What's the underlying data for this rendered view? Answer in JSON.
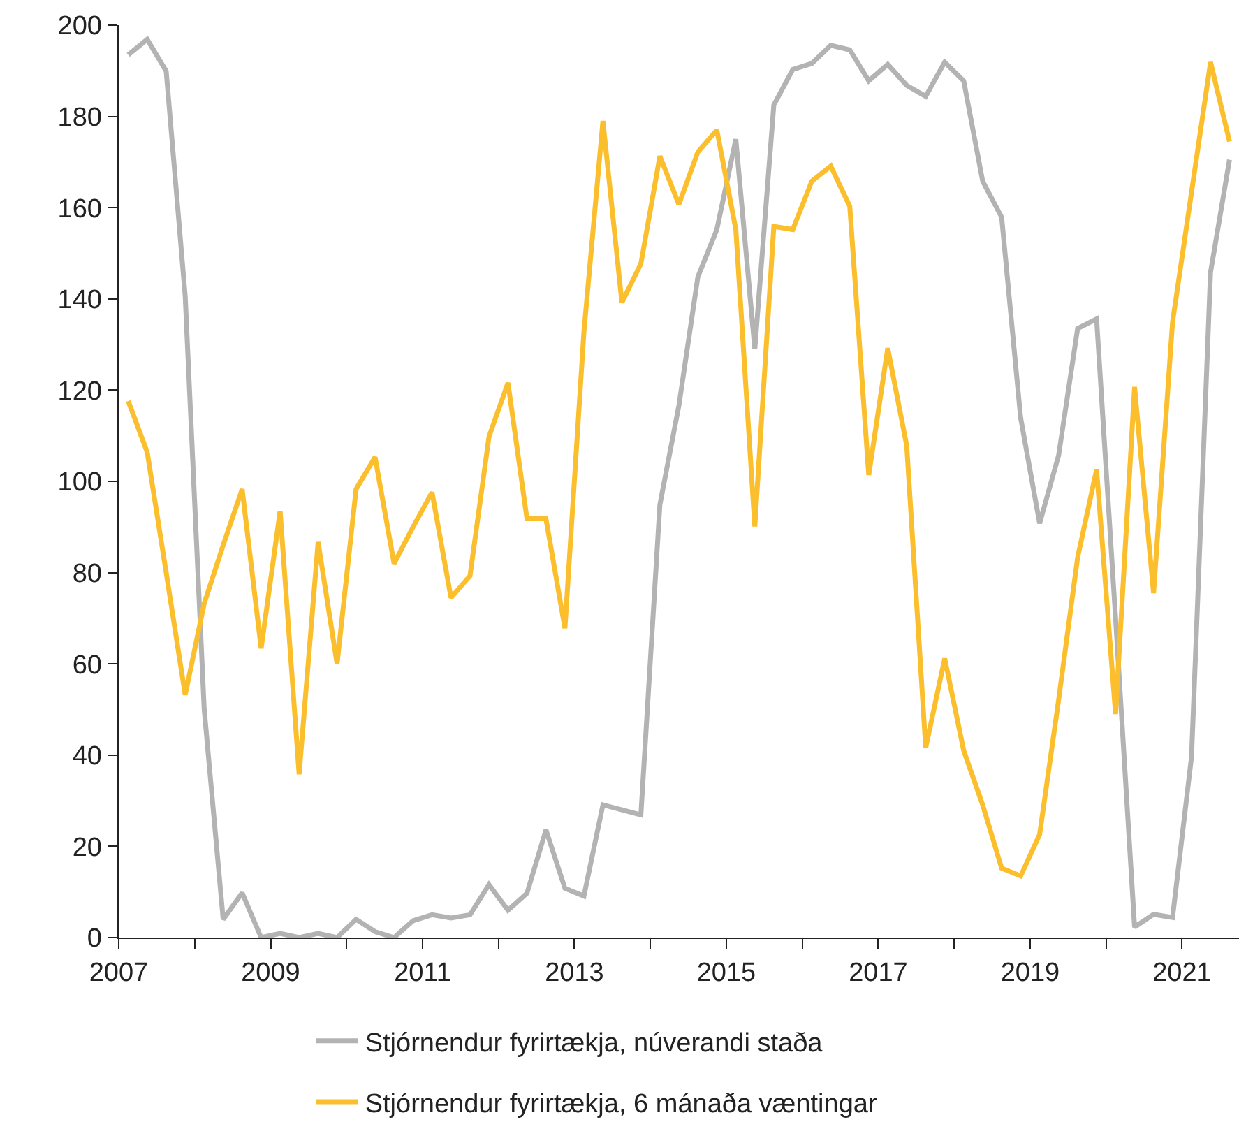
{
  "chart_data": {
    "type": "line",
    "x": [
      2007.125,
      2007.375,
      2007.625,
      2007.875,
      2008.125,
      2008.375,
      2008.625,
      2008.875,
      2009.125,
      2009.375,
      2009.625,
      2009.875,
      2010.125,
      2010.375,
      2010.625,
      2010.875,
      2011.125,
      2011.375,
      2011.625,
      2011.875,
      2012.125,
      2012.375,
      2012.625,
      2012.875,
      2013.125,
      2013.375,
      2013.625,
      2013.875,
      2014.125,
      2014.375,
      2014.625,
      2014.875,
      2015.125,
      2015.375,
      2015.625,
      2015.875,
      2016.125,
      2016.375,
      2016.625,
      2016.875,
      2017.125,
      2017.375,
      2017.625,
      2017.875,
      2018.125,
      2018.375,
      2018.625,
      2018.875,
      2019.125,
      2019.375,
      2019.625,
      2019.875,
      2020.125,
      2020.375,
      2020.625,
      2020.875,
      2021.125,
      2021.375,
      2021.625
    ],
    "series": [
      {
        "name": "Stjórnendur fyrirtækja, núverandi staða",
        "color": "#b3b3b3",
        "values": [
          193.5,
          196.9,
          189.9,
          140.6,
          50.1,
          4,
          9.8,
          0,
          0.9,
          0,
          0.9,
          0,
          4,
          1.3,
          0,
          3.7,
          5,
          4.3,
          5,
          11.6,
          6,
          9.7,
          23.6,
          10.8,
          9.1,
          29.1,
          28,
          26.9,
          94.9,
          116.6,
          144.8,
          155.2,
          175,
          129,
          182.5,
          190.3,
          191.6,
          195.6,
          194.6,
          187.8,
          191.4,
          186.8,
          184.4,
          191.9,
          187.8,
          165.8,
          157.9,
          113.9,
          90.8,
          105.7,
          133.5,
          135.6,
          70,
          2.3,
          5.1,
          4.4,
          39.7,
          145.8,
          170.5
        ]
      },
      {
        "name": "Stjórnendur fyrirtækja, 6 mánaða væntingar",
        "color": "#fbbf2d",
        "values": [
          117.6,
          106.4,
          80,
          53.2,
          73.2,
          86,
          98.3,
          63.4,
          93.5,
          35.8,
          86.7,
          60,
          98.3,
          105.3,
          82,
          90,
          97.6,
          74.5,
          79.3,
          109.8,
          121.6,
          91.8,
          91.8,
          67.8,
          132.8,
          179,
          139.2,
          147.7,
          171.3,
          160.7,
          172.2,
          177,
          155.2,
          90.1,
          155.9,
          155.2,
          165.8,
          169.1,
          160.3,
          101.4,
          129.2,
          107.8,
          41.6,
          61.2,
          41,
          29.1,
          15.2,
          13.5,
          22.6,
          52.1,
          83.3,
          102.6,
          49,
          120.7,
          75.5,
          134.9,
          163.4,
          191.9,
          174.5
        ]
      }
    ],
    "xlim": [
      2007,
      2021.75
    ],
    "xticks": [
      2007,
      {
        "value": 2008,
        "label": null
      },
      2009,
      {
        "value": 2010,
        "label": null
      },
      2011,
      {
        "value": 2012,
        "label": null
      },
      2013,
      {
        "value": 2014,
        "label": null
      },
      2015,
      {
        "value": 2016,
        "label": null
      },
      2017,
      {
        "value": 2018,
        "label": null
      },
      2019,
      {
        "value": 2020,
        "label": null
      },
      2021
    ],
    "ylim": [
      0,
      200
    ],
    "yticks": [
      0,
      20,
      40,
      60,
      80,
      100,
      120,
      140,
      160,
      180,
      200
    ],
    "grid": false,
    "legend": "bottom",
    "marker": "none",
    "line_style": "solid"
  }
}
